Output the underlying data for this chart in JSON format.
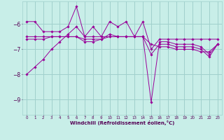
{
  "background_color": "#c8eee8",
  "grid_color": "#a0d0cc",
  "line_color": "#990099",
  "marker_color": "#990099",
  "xlabel": "Windchill (Refroidissement éolien,°C)",
  "xlabel_color": "#550055",
  "ylabel_color": "#550055",
  "xlim": [
    -0.5,
    23.5
  ],
  "ylim": [
    -9.6,
    -5.1
  ],
  "yticks": [
    -9,
    -8,
    -7,
    -6
  ],
  "xticks": [
    0,
    1,
    2,
    3,
    4,
    5,
    6,
    7,
    8,
    9,
    10,
    11,
    12,
    13,
    14,
    15,
    16,
    17,
    18,
    19,
    20,
    21,
    22,
    23
  ],
  "line1": [
    -8.0,
    -7.7,
    -7.4,
    -7.0,
    -6.7,
    -6.4,
    -6.1,
    -6.5,
    -6.5,
    -6.5,
    -6.5,
    -6.5,
    -6.5,
    -6.5,
    -6.5,
    -6.8,
    -6.9,
    -6.9,
    -7.0,
    -7.0,
    -7.0,
    -7.1,
    -7.1,
    -6.8
  ],
  "line2": [
    -5.9,
    -5.9,
    -6.3,
    -6.3,
    -6.3,
    -6.1,
    -5.3,
    -6.5,
    -6.1,
    -6.5,
    -5.9,
    -6.1,
    -5.9,
    -6.5,
    -5.9,
    -7.0,
    -6.6,
    -6.6,
    -6.6,
    -6.6,
    -6.6,
    -6.6,
    -6.6,
    -6.6
  ],
  "line3": [
    -6.5,
    -6.5,
    -6.5,
    -6.5,
    -6.5,
    -6.5,
    -6.5,
    -6.6,
    -6.6,
    -6.6,
    -6.4,
    -6.5,
    -6.5,
    -6.5,
    -6.5,
    -9.1,
    -6.7,
    -6.7,
    -6.8,
    -6.8,
    -6.8,
    -6.9,
    -7.2,
    -6.8
  ],
  "line4": [
    -6.6,
    -6.6,
    -6.6,
    -6.5,
    -6.5,
    -6.5,
    -6.5,
    -6.7,
    -6.7,
    -6.6,
    -6.5,
    -6.5,
    -6.5,
    -6.5,
    -6.5,
    -7.2,
    -6.8,
    -6.8,
    -6.9,
    -6.9,
    -6.9,
    -7.0,
    -7.3,
    -6.8
  ]
}
